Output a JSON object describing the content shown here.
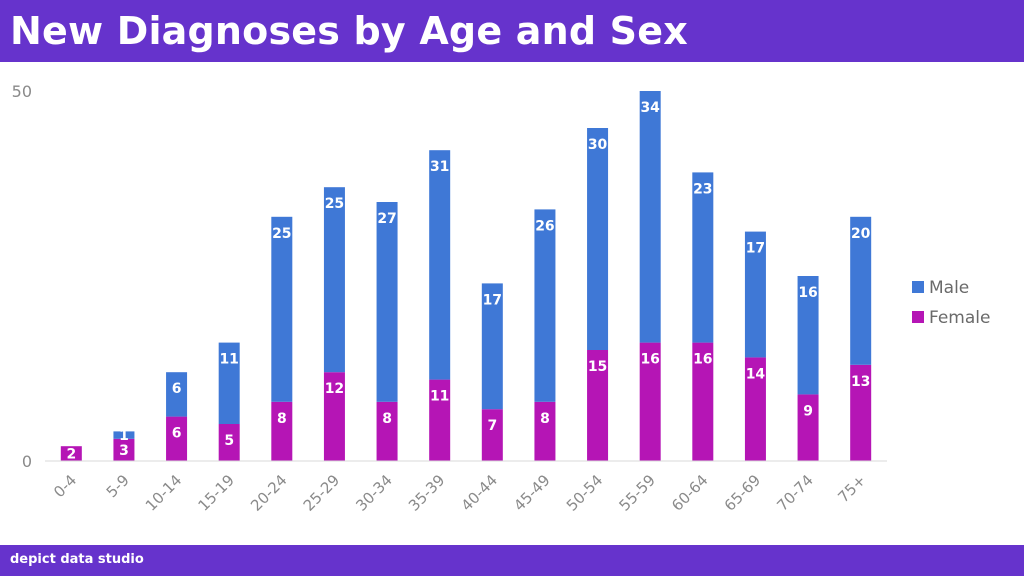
{
  "header": {
    "title": "New Diagnoses by Age and Sex"
  },
  "footer": {
    "brand": "depict data studio"
  },
  "colors": {
    "title_bar": "#6633cc",
    "male": "#3f78d6",
    "female": "#b515b5",
    "axis": "#d9d9d9",
    "tick_text": "#8a8a8a"
  },
  "chart_data": {
    "type": "bar",
    "stacked": true,
    "title": "New Diagnoses by Age and Sex",
    "xlabel": "",
    "ylabel": "",
    "ylim": [
      0,
      50
    ],
    "yticks": [
      0,
      50
    ],
    "grid": false,
    "legend_position": "right",
    "categories": [
      "0-4",
      "5-9",
      "10-14",
      "15-19",
      "20-24",
      "25-29",
      "30-34",
      "35-39",
      "40-44",
      "45-49",
      "50-54",
      "55-59",
      "60-64",
      "65-69",
      "70-74",
      "75+"
    ],
    "series": [
      {
        "name": "Female",
        "color": "#b515b5",
        "values": [
          2,
          3,
          6,
          5,
          8,
          12,
          8,
          11,
          7,
          8,
          15,
          16,
          16,
          14,
          9,
          13
        ]
      },
      {
        "name": "Male",
        "color": "#3f78d6",
        "values": [
          null,
          1,
          6,
          11,
          25,
          25,
          27,
          31,
          17,
          26,
          30,
          34,
          23,
          17,
          16,
          20
        ]
      }
    ],
    "legend": [
      "Male",
      "Female"
    ]
  }
}
